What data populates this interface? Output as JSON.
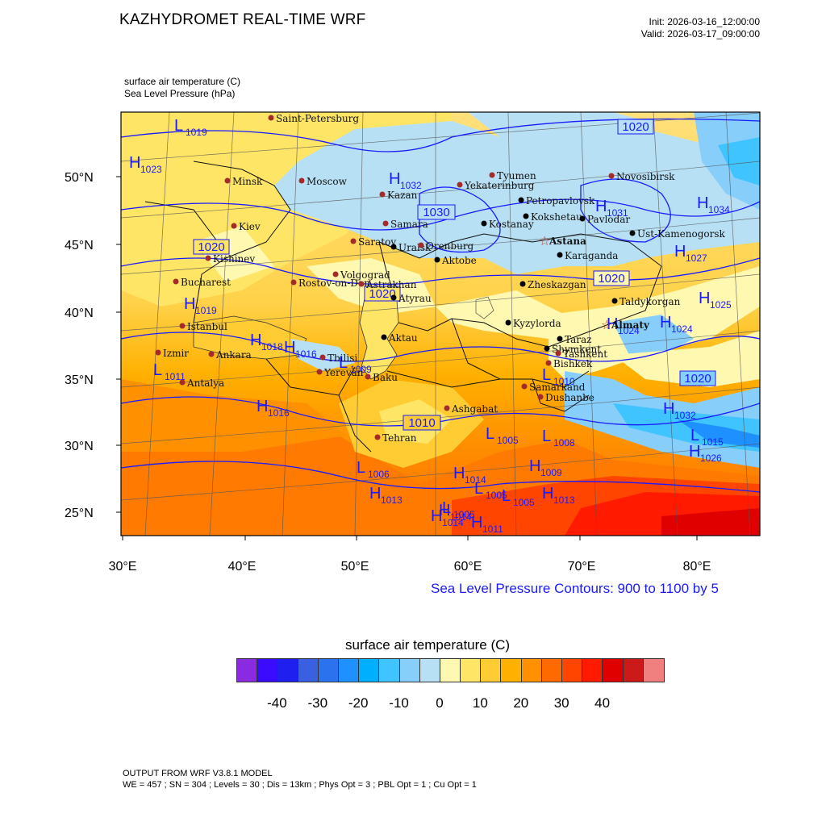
{
  "header": {
    "title": "KAZHYDROMET REAL-TIME WRF",
    "init": "Init: 2026-03-16_12:00:00",
    "valid": "Valid: 2026-03-17_09:00:00"
  },
  "fields": {
    "field1": "surface air temperature   (C)",
    "field2": "Sea Level Pressure   (hPa)"
  },
  "axes": {
    "lat_labels": [
      "50°N",
      "45°N",
      "40°N",
      "35°N",
      "30°N",
      "25°N"
    ],
    "lon_labels": [
      "30°E",
      "40°E",
      "50°E",
      "60°E",
      "70°E",
      "80°E"
    ]
  },
  "slp_note": "Sea Level Pressure Contours: 900 to 1100 by 5",
  "colorbar": {
    "title": "surface air temperature  (C)",
    "colors": [
      "#8a2be2",
      "#3b0bff",
      "#1f1ff0",
      "#3a5fe0",
      "#2b73ee",
      "#1e90ff",
      "#00b0ff",
      "#40c4ff",
      "#87cefa",
      "#b8e0f5",
      "#fff8b0",
      "#ffe566",
      "#ffcc33",
      "#ffb000",
      "#ff9000",
      "#ff6a00",
      "#ff4500",
      "#ff1a00",
      "#e00000",
      "#cc1a1a",
      "#f08080"
    ],
    "labels": [
      "-40",
      "-30",
      "-20",
      "-10",
      "0",
      "10",
      "20",
      "30",
      "40"
    ]
  },
  "map": {
    "cities": [
      {
        "name": "Saint-Petersburg",
        "type": "red"
      },
      {
        "name": "Minsk",
        "type": "red"
      },
      {
        "name": "Moscow",
        "type": "red"
      },
      {
        "name": "Kazan",
        "type": "red"
      },
      {
        "name": "Tyumen",
        "type": "red"
      },
      {
        "name": "Yekaterinburg",
        "type": "red"
      },
      {
        "name": "Novosibirsk",
        "type": "red"
      },
      {
        "name": "Petropavlovsk",
        "type": "black"
      },
      {
        "name": "Kokshetau",
        "type": "black"
      },
      {
        "name": "Kostanay",
        "type": "black"
      },
      {
        "name": "Pavlodar",
        "type": "black"
      },
      {
        "name": "Ust-Kamenogorsk",
        "type": "black"
      },
      {
        "name": "Kiev",
        "type": "red"
      },
      {
        "name": "Samara",
        "type": "red"
      },
      {
        "name": "Saratov",
        "type": "red"
      },
      {
        "name": "Uralsk",
        "type": "black"
      },
      {
        "name": "Orenburg",
        "type": "red"
      },
      {
        "name": "Aktobe",
        "type": "black"
      },
      {
        "name": "Astana",
        "type": "star"
      },
      {
        "name": "Karaganda",
        "type": "black"
      },
      {
        "name": "Kishinev",
        "type": "red"
      },
      {
        "name": "Volgograd",
        "type": "red"
      },
      {
        "name": "Bucharest",
        "type": "red"
      },
      {
        "name": "Rostov-on-Don",
        "type": "red"
      },
      {
        "name": "Astrakhan",
        "type": "red"
      },
      {
        "name": "Atyrau",
        "type": "black"
      },
      {
        "name": "Zheskazgan",
        "type": "black"
      },
      {
        "name": "Taldykorgan",
        "type": "black"
      },
      {
        "name": "Istanbul",
        "type": "red"
      },
      {
        "name": "Kyzylorda",
        "type": "black"
      },
      {
        "name": "Almaty",
        "type": "star"
      },
      {
        "name": "Aktau",
        "type": "black"
      },
      {
        "name": "Taraz",
        "type": "black"
      },
      {
        "name": "Bishkek",
        "type": "red"
      },
      {
        "name": "Shymkent",
        "type": "black"
      },
      {
        "name": "Izmir",
        "type": "red"
      },
      {
        "name": "Ankara",
        "type": "red"
      },
      {
        "name": "Tbilisi",
        "type": "red"
      },
      {
        "name": "Tashkent",
        "type": "red"
      },
      {
        "name": "Yerevan",
        "type": "red"
      },
      {
        "name": "Baku",
        "type": "red"
      },
      {
        "name": "Samarkand",
        "type": "red"
      },
      {
        "name": "Dushanbe",
        "type": "red"
      },
      {
        "name": "Antalya",
        "type": "red"
      },
      {
        "name": "Ashgabat",
        "type": "red"
      },
      {
        "name": "Tehran",
        "type": "red"
      }
    ],
    "pressure_centers": [
      {
        "kind": "L",
        "value": "1019"
      },
      {
        "kind": "H",
        "value": "1023"
      },
      {
        "kind": "H",
        "value": "1032"
      },
      {
        "kind": "H",
        "value": "1031"
      },
      {
        "kind": "H",
        "value": "1034"
      },
      {
        "kind": "H",
        "value": "1027"
      },
      {
        "kind": "H",
        "value": "1019"
      },
      {
        "kind": "H",
        "value": "1025"
      },
      {
        "kind": "H",
        "value": "1024"
      },
      {
        "kind": "H",
        "value": "1024"
      },
      {
        "kind": "H",
        "value": "1018"
      },
      {
        "kind": "H",
        "value": "1016"
      },
      {
        "kind": "L",
        "value": "1009"
      },
      {
        "kind": "L",
        "value": "1011"
      },
      {
        "kind": "H",
        "value": "1016"
      },
      {
        "kind": "L",
        "value": "1010"
      },
      {
        "kind": "L",
        "value": "1008"
      },
      {
        "kind": "H",
        "value": "1032"
      },
      {
        "kind": "L",
        "value": "1005"
      },
      {
        "kind": "L",
        "value": "1006"
      },
      {
        "kind": "H",
        "value": "1014"
      },
      {
        "kind": "H",
        "value": "1009"
      },
      {
        "kind": "H",
        "value": "1013"
      },
      {
        "kind": "H",
        "value": "1014"
      },
      {
        "kind": "L",
        "value": "1005"
      },
      {
        "kind": "L",
        "value": "1005"
      },
      {
        "kind": "H",
        "value": "1013"
      },
      {
        "kind": "L",
        "value": "1005"
      },
      {
        "kind": "H",
        "value": "1014"
      },
      {
        "kind": "H",
        "value": "1011"
      },
      {
        "kind": "L",
        "value": "1015"
      },
      {
        "kind": "H",
        "value": "1026"
      }
    ],
    "isobar_labels": [
      "1020",
      "1030",
      "1020",
      "1020",
      "1020",
      "1010",
      "1020"
    ]
  },
  "footer": {
    "line1": "OUTPUT FROM WRF V3.8.1 MODEL",
    "line2": "WE = 457 ; SN = 304 ; Levels = 30 ; Dis = 13km ; Phys Opt = 3 ; PBL Opt = 1 ; Cu Opt = 1"
  }
}
